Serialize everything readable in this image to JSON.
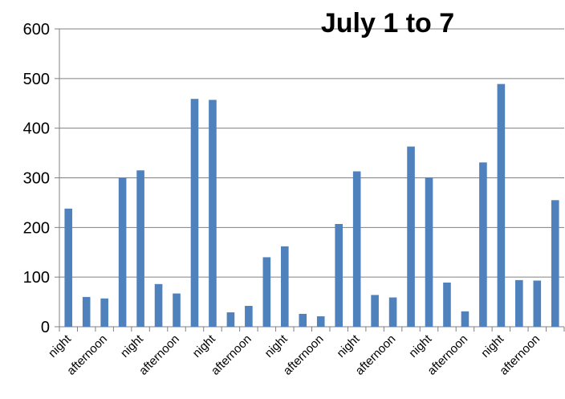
{
  "chart_data": {
    "type": "bar",
    "title": "July 1 to 7",
    "xlabel": "",
    "ylabel": "",
    "ylim": [
      0,
      600
    ],
    "yticks": [
      0,
      100,
      200,
      300,
      400,
      500,
      600
    ],
    "grid": true,
    "legend": "none",
    "colors": {
      "bar": "#4f81bd",
      "grid": "#808080",
      "axis": "#808080"
    },
    "categories": [
      "night",
      "",
      "afternoon",
      "",
      "night",
      "",
      "afternoon",
      "",
      "night",
      "",
      "afternoon",
      "",
      "night",
      "",
      "afternoon",
      "",
      "night",
      "",
      "afternoon",
      "",
      "night",
      "",
      "afternoon",
      "",
      "night",
      "",
      "afternoon",
      ""
    ],
    "values": [
      238,
      60,
      57,
      300,
      315,
      86,
      67,
      459,
      457,
      29,
      42,
      140,
      162,
      26,
      21,
      207,
      313,
      64,
      59,
      363,
      301,
      89,
      31,
      331,
      489,
      94,
      93,
      255
    ]
  }
}
